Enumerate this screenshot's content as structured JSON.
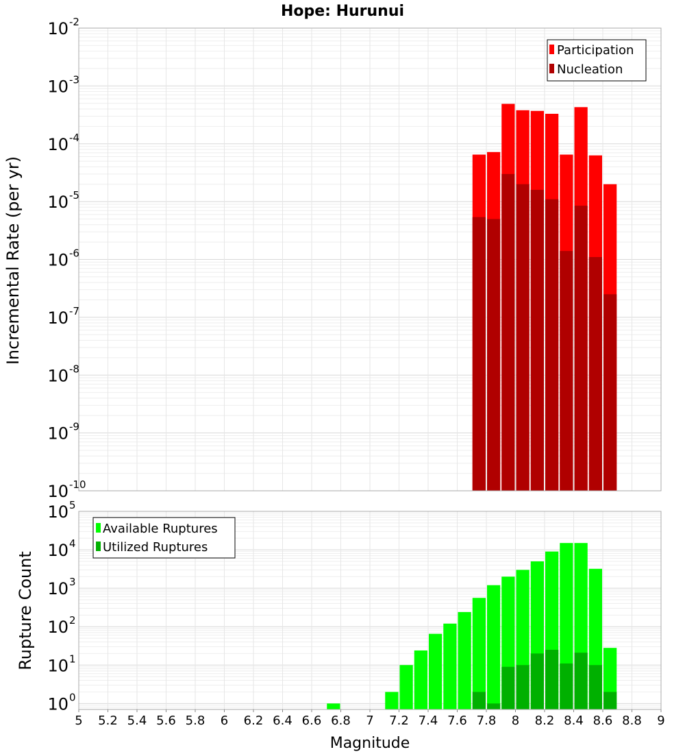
{
  "chart_data": [
    {
      "type": "bar",
      "title": "Hope: Hurunui",
      "xlabel": "",
      "ylabel": "Incremental Rate (per yr)",
      "yscale": "log",
      "ylim": [
        1e-10,
        0.01
      ],
      "xlim": [
        5,
        9
      ],
      "ytick_labels": [
        {
          "base": "10",
          "exp": "-10"
        },
        {
          "base": "10",
          "exp": "-9"
        },
        {
          "base": "10",
          "exp": "-8"
        },
        {
          "base": "10",
          "exp": "-7"
        },
        {
          "base": "10",
          "exp": "-6"
        },
        {
          "base": "10",
          "exp": "-5"
        },
        {
          "base": "10",
          "exp": "-4"
        },
        {
          "base": "10",
          "exp": "-3"
        },
        {
          "base": "10",
          "exp": "-2"
        }
      ],
      "legend_position": "top-right",
      "x": [
        7.75,
        7.85,
        7.95,
        8.05,
        8.15,
        8.25,
        8.35,
        8.45,
        8.55,
        8.65
      ],
      "series": [
        {
          "name": "Participation",
          "color": "#ff0000",
          "values": [
            6.5e-05,
            7.2e-05,
            0.00049,
            0.00038,
            0.00037,
            0.00033,
            6.5e-05,
            0.00043,
            6.3e-05,
            2e-05
          ]
        },
        {
          "name": "Nucleation",
          "color": "#b00000",
          "values": [
            5.4e-06,
            5e-06,
            3e-05,
            2e-05,
            1.6e-05,
            1.1e-05,
            1.4e-06,
            8.5e-06,
            1.1e-06,
            2.5e-07
          ]
        }
      ]
    },
    {
      "type": "bar",
      "title": "",
      "xlabel": "Magnitude",
      "ylabel": "Rupture Count",
      "yscale": "log",
      "ylim": [
        0.7,
        100000.0
      ],
      "xlim": [
        5,
        9
      ],
      "ytick_labels": [
        {
          "base": "10",
          "exp": "0"
        },
        {
          "base": "10",
          "exp": "1"
        },
        {
          "base": "10",
          "exp": "2"
        },
        {
          "base": "10",
          "exp": "3"
        },
        {
          "base": "10",
          "exp": "4"
        },
        {
          "base": "10",
          "exp": "5"
        }
      ],
      "xtick_labels": [
        "5",
        "5.2",
        "5.4",
        "5.6",
        "5.8",
        "6",
        "6.2",
        "6.4",
        "6.6",
        "6.8",
        "7",
        "7.2",
        "7.4",
        "7.6",
        "7.8",
        "8",
        "8.2",
        "8.4",
        "8.6",
        "8.8",
        "9"
      ],
      "legend_position": "top-left",
      "x": [
        6.75,
        7.15,
        7.25,
        7.35,
        7.45,
        7.55,
        7.65,
        7.75,
        7.85,
        7.95,
        8.05,
        8.15,
        8.25,
        8.35,
        8.45,
        8.55,
        8.65
      ],
      "series": [
        {
          "name": "Available Ruptures",
          "color": "#00ff00",
          "values": [
            1,
            2,
            10,
            24,
            65,
            120,
            240,
            560,
            1200,
            2000,
            3000,
            5000,
            9000,
            15000,
            15000,
            3200,
            28
          ]
        },
        {
          "name": "Utilized Ruptures",
          "color": "#00b000",
          "values": [
            0,
            0,
            0,
            0,
            0,
            0,
            0,
            2,
            1,
            9,
            10,
            20,
            25,
            11,
            21,
            10,
            2
          ]
        }
      ]
    }
  ]
}
